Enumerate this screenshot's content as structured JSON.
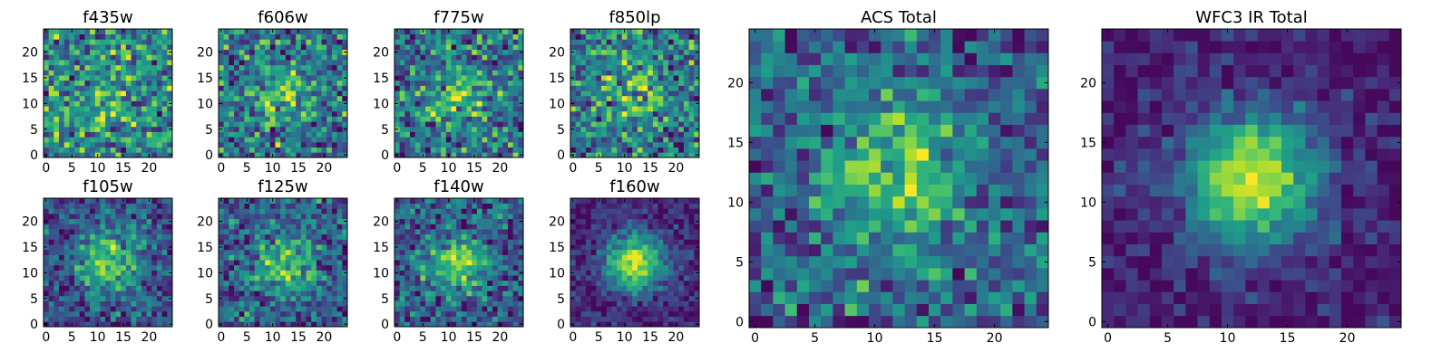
{
  "chart_data": [
    {
      "type": "heatmap",
      "title": "f435w",
      "x_ticks": [
        "0",
        "5",
        "10",
        "15",
        "20"
      ],
      "y_ticks": [
        "0",
        "5",
        "10",
        "15",
        "20"
      ],
      "xlim": [
        -0.5,
        24.5
      ],
      "ylim": [
        -0.5,
        24.5
      ],
      "grid_size": 25,
      "colormap": "viridis",
      "seed": 11,
      "blob": 0.15,
      "noise": 0.8
    },
    {
      "type": "heatmap",
      "title": "f606w",
      "x_ticks": [
        "0",
        "5",
        "10",
        "15",
        "20"
      ],
      "y_ticks": [
        "0",
        "5",
        "10",
        "15",
        "20"
      ],
      "xlim": [
        -0.5,
        24.5
      ],
      "ylim": [
        -0.5,
        24.5
      ],
      "grid_size": 25,
      "colormap": "viridis",
      "seed": 23,
      "blob": 0.3,
      "noise": 0.75
    },
    {
      "type": "heatmap",
      "title": "f775w",
      "x_ticks": [
        "0",
        "5",
        "10",
        "15",
        "20"
      ],
      "y_ticks": [
        "0",
        "5",
        "10",
        "15",
        "20"
      ],
      "xlim": [
        -0.5,
        24.5
      ],
      "ylim": [
        -0.5,
        24.5
      ],
      "grid_size": 25,
      "colormap": "viridis",
      "seed": 37,
      "blob": 0.3,
      "noise": 0.75
    },
    {
      "type": "heatmap",
      "title": "f850lp",
      "x_ticks": [
        "0",
        "5",
        "10",
        "15",
        "20"
      ],
      "y_ticks": [
        "0",
        "5",
        "10",
        "15",
        "20"
      ],
      "xlim": [
        -0.5,
        24.5
      ],
      "ylim": [
        -0.5,
        24.5
      ],
      "grid_size": 25,
      "colormap": "viridis",
      "seed": 41,
      "blob": 0.25,
      "noise": 0.75
    },
    {
      "type": "heatmap",
      "title": "f105w",
      "x_ticks": [
        "0",
        "5",
        "10",
        "15",
        "20"
      ],
      "y_ticks": [
        "0",
        "5",
        "10",
        "15",
        "20"
      ],
      "xlim": [
        -0.5,
        24.5
      ],
      "ylim": [
        -0.5,
        24.5
      ],
      "grid_size": 25,
      "colormap": "viridis",
      "seed": 53,
      "blob": 0.55,
      "noise": 0.55
    },
    {
      "type": "heatmap",
      "title": "f125w",
      "x_ticks": [
        "0",
        "5",
        "10",
        "15",
        "20"
      ],
      "y_ticks": [
        "0",
        "5",
        "10",
        "15",
        "20"
      ],
      "xlim": [
        -0.5,
        24.5
      ],
      "ylim": [
        -0.5,
        24.5
      ],
      "grid_size": 25,
      "colormap": "viridis",
      "seed": 67,
      "blob": 0.45,
      "noise": 0.6
    },
    {
      "type": "heatmap",
      "title": "f140w",
      "x_ticks": [
        "0",
        "5",
        "10",
        "15",
        "20"
      ],
      "y_ticks": [
        "0",
        "5",
        "10",
        "15",
        "20"
      ],
      "xlim": [
        -0.5,
        24.5
      ],
      "ylim": [
        -0.5,
        24.5
      ],
      "grid_size": 25,
      "colormap": "viridis",
      "seed": 71,
      "blob": 0.5,
      "noise": 0.6
    },
    {
      "type": "heatmap",
      "title": "f160w",
      "x_ticks": [
        "0",
        "5",
        "10",
        "15",
        "20"
      ],
      "y_ticks": [
        "0",
        "5",
        "10",
        "15",
        "20"
      ],
      "xlim": [
        -0.5,
        24.5
      ],
      "ylim": [
        -0.5,
        24.5
      ],
      "grid_size": 25,
      "colormap": "viridis",
      "seed": 83,
      "blob": 0.8,
      "noise": 0.35
    },
    {
      "type": "heatmap",
      "title": "ACS Total",
      "x_ticks": [
        "0",
        "5",
        "10",
        "15",
        "20"
      ],
      "y_ticks": [
        "0",
        "5",
        "10",
        "15",
        "20"
      ],
      "xlim": [
        -0.5,
        24.5
      ],
      "ylim": [
        -0.5,
        24.5
      ],
      "grid_size": 25,
      "colormap": "viridis",
      "seed": 97,
      "blob": 0.45,
      "noise": 0.6
    },
    {
      "type": "heatmap",
      "title": "WFC3 IR Total",
      "x_ticks": [
        "0",
        "5",
        "10",
        "15",
        "20"
      ],
      "y_ticks": [
        "0",
        "5",
        "10",
        "15",
        "20"
      ],
      "xlim": [
        -0.5,
        24.5
      ],
      "ylim": [
        -0.5,
        24.5
      ],
      "grid_size": 25,
      "colormap": "viridis",
      "seed": 101,
      "blob": 0.85,
      "noise": 0.3
    }
  ]
}
